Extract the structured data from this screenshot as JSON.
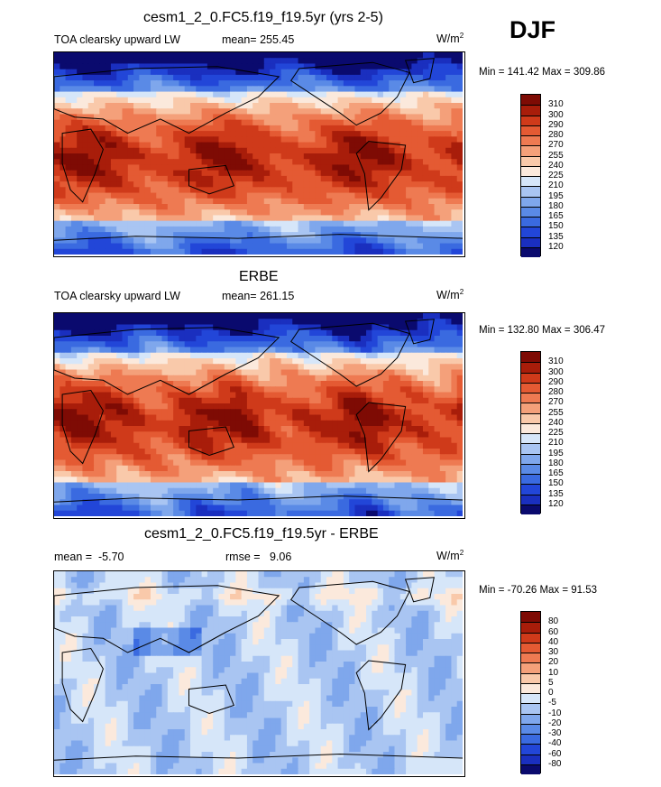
{
  "season": "DJF",
  "colors": {
    "scale": [
      "#0a0a6e",
      "#1a2fbf",
      "#2246d8",
      "#3a6ae0",
      "#5a8ae6",
      "#7fa7ec",
      "#a9c5f2",
      "#d6e6f9",
      "#fbe9dc",
      "#f9c9aa",
      "#f4a07a",
      "#ee7a52",
      "#e45a33",
      "#cf3a1a",
      "#a81d0a",
      "#7e0b04"
    ],
    "land_outline": "#000000"
  },
  "chart_data": [
    {
      "type": "heatmap",
      "title": "cesm1_2_0.FC5.f19_f19.5yr (yrs 2-5)",
      "variable": "TOA clearsky upward LW",
      "stat_label": "mean=",
      "stat_value": "255.45",
      "units": "W/m",
      "units_exp": "2",
      "minmax": "Min = 141.42 Max = 309.86",
      "levels": [
        "120",
        "135",
        "150",
        "165",
        "180",
        "195",
        "210",
        "225",
        "240",
        "255",
        "270",
        "280",
        "290",
        "300",
        "310"
      ]
    },
    {
      "type": "heatmap",
      "title": "ERBE",
      "variable": "TOA clearsky upward LW",
      "stat_label": "mean=",
      "stat_value": "261.15",
      "units": "W/m",
      "units_exp": "2",
      "minmax": "Min = 132.80 Max = 306.47",
      "levels": [
        "120",
        "135",
        "150",
        "165",
        "180",
        "195",
        "210",
        "225",
        "240",
        "255",
        "270",
        "280",
        "290",
        "300",
        "310"
      ]
    },
    {
      "type": "heatmap",
      "title": "cesm1_2_0.FC5.f19_f19.5yr - ERBE",
      "variable": "",
      "stat_label": "mean =",
      "stat_value": "-5.70",
      "stat2_label": "rmse =",
      "stat2_value": "9.06",
      "units": "W/m",
      "units_exp": "2",
      "minmax": "Min = -70.26 Max =  91.53",
      "levels": [
        "-80",
        "-60",
        "-40",
        "-30",
        "-20",
        "-10",
        "-5",
        "0",
        "5",
        "10",
        "20",
        "30",
        "40",
        "60",
        "80"
      ]
    }
  ]
}
